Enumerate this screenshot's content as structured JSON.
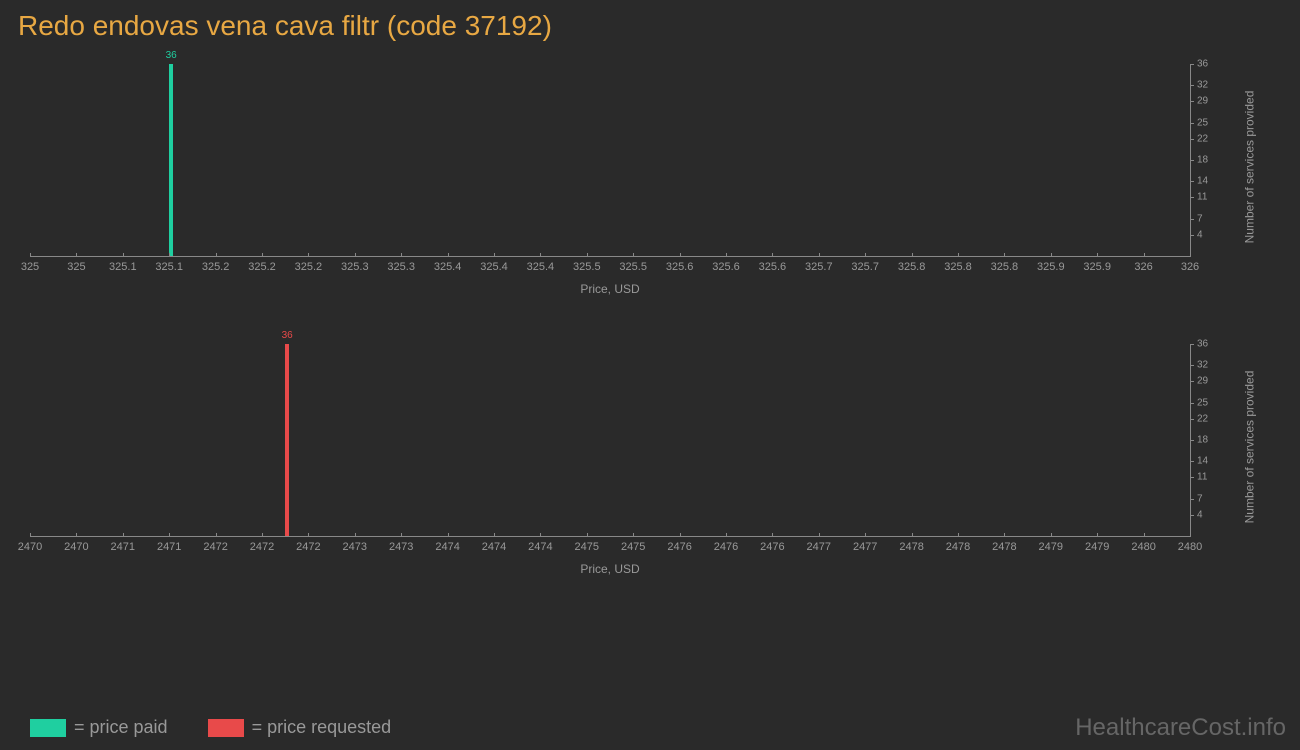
{
  "title": "Redo endovas vena cava filtr (code 37192)",
  "background_color": "#2a2a2a",
  "axis_color": "#888888",
  "tick_label_color": "#999999",
  "title_color": "#e8a843",
  "chart1": {
    "type": "bar",
    "bar_color": "#1fcfa0",
    "bar_value": 36,
    "bar_label": "36",
    "bar_x": 325.12,
    "xmin": 325,
    "xmax": 326,
    "x_ticks": [
      "325",
      "325",
      "325.1",
      "325.1",
      "325.2",
      "325.2",
      "325.2",
      "325.3",
      "325.3",
      "325.4",
      "325.4",
      "325.4",
      "325.5",
      "325.5",
      "325.6",
      "325.6",
      "325.6",
      "325.7",
      "325.7",
      "325.8",
      "325.8",
      "325.8",
      "325.9",
      "325.9",
      "326",
      "326"
    ],
    "x_axis_label": "Price, USD",
    "ymin": 0,
    "ymax": 36,
    "y_ticks": [
      4,
      7,
      11,
      14,
      18,
      22,
      25,
      29,
      32,
      36
    ],
    "y_axis_label": "Number of services provided"
  },
  "chart2": {
    "type": "bar",
    "bar_color": "#e84a4a",
    "bar_value": 36,
    "bar_label": "36",
    "bar_x": 2472.2,
    "xmin": 2470,
    "xmax": 2480,
    "x_ticks": [
      "2470",
      "2470",
      "2471",
      "2471",
      "2472",
      "2472",
      "2472",
      "2473",
      "2473",
      "2474",
      "2474",
      "2474",
      "2475",
      "2475",
      "2476",
      "2476",
      "2476",
      "2477",
      "2477",
      "2478",
      "2478",
      "2478",
      "2479",
      "2479",
      "2480",
      "2480"
    ],
    "x_axis_label": "Price, USD",
    "ymin": 0,
    "ymax": 36,
    "y_ticks": [
      4,
      7,
      11,
      14,
      18,
      22,
      25,
      29,
      32,
      36
    ],
    "y_axis_label": "Number of services provided"
  },
  "legend": {
    "items": [
      {
        "color": "#1fcfa0",
        "label": "= price paid"
      },
      {
        "color": "#e84a4a",
        "label": "= price requested"
      }
    ]
  },
  "watermark": "HealthcareCost.info"
}
